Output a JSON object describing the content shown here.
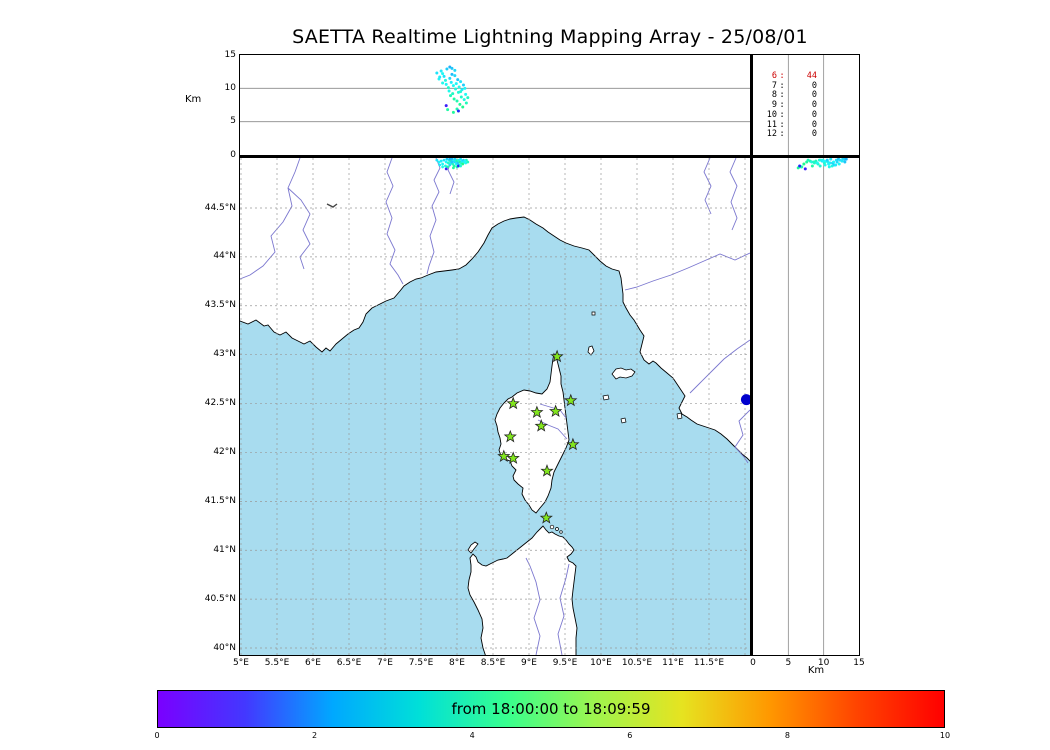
{
  "title": "SAETTA Realtime Lightning Mapping Array - 25/08/01",
  "alt_lon_panel": {
    "axis_label": "Km",
    "tick_labels": [
      "15",
      "10",
      "5",
      "0"
    ]
  },
  "alt_lat_panel": {
    "axis_label": "Km",
    "tick_labels": [
      "0",
      "5",
      "10",
      "15"
    ]
  },
  "hour_panel": {
    "rows": [
      {
        "hour": "6",
        "count": "44",
        "highlight": true
      },
      {
        "hour": "7",
        "count": "0",
        "highlight": false
      },
      {
        "hour": "8",
        "count": "0",
        "highlight": false
      },
      {
        "hour": "9",
        "count": "0",
        "highlight": false
      },
      {
        "hour": "10",
        "count": "0",
        "highlight": false
      },
      {
        "hour": "11",
        "count": "0",
        "highlight": false
      },
      {
        "hour": "12",
        "count": "0",
        "highlight": false
      }
    ]
  },
  "map_panel": {
    "lat_tick_labels": [
      "44.5°N",
      "44°N",
      "43.5°N",
      "43°N",
      "42.5°N",
      "42°N",
      "41.5°N",
      "41°N",
      "40.5°N",
      "40°N"
    ],
    "lon_tick_labels": [
      "5°E",
      "5.5°E",
      "6°E",
      "6.5°E",
      "7°E",
      "7.5°E",
      "8°E",
      "8.5°E",
      "9°E",
      "9.5°E",
      "10°E",
      "10.5°E",
      "11°E",
      "11.5°E"
    ]
  },
  "colorbar": {
    "label": "from 18:00:00 to 18:09:59",
    "tick_labels": [
      "0",
      "2",
      "4",
      "6",
      "8",
      "10"
    ],
    "gradient_stops": [
      "#7a00ff",
      "#4338ff",
      "#00a8ff",
      "#00e0d8",
      "#38ff8e",
      "#9ef54e",
      "#e6e320",
      "#ff9800",
      "#ff4400",
      "#ff0000"
    ]
  },
  "colors": {
    "sea": "#a8dcef",
    "land": "#ffffff",
    "coastline": "#000000",
    "river": "#7b77cf",
    "grid": "#999999",
    "station_fill": "#82e61e",
    "station_edge": "#222222",
    "highlight_marker": "#0000cd",
    "count_highlight": "#cc0000"
  },
  "chart_data": {
    "type": "scatter",
    "title": "SAETTA Realtime Lightning Mapping Array - 25/08/01",
    "description": "Realtime lightning mapping display: map view (lon/lat), altitude-longitude panel (top), altitude-latitude panel (right), hourly source counts, sources colored by time",
    "time_window": {
      "from": "18:00:00",
      "to": "18:09:59"
    },
    "colormap": {
      "name": "rainbow",
      "range_minutes": [
        0,
        10
      ],
      "ticks": [
        0,
        2,
        4,
        6,
        8,
        10
      ]
    },
    "altitude_axis": {
      "label": "Km",
      "range": [
        0,
        15
      ],
      "ticks": [
        0,
        5,
        10,
        15
      ],
      "tick_values_desc": [
        15,
        10,
        5,
        0
      ],
      "grid": [
        5,
        10
      ]
    },
    "map": {
      "lon_range_deg_e": [
        5.0,
        12.08
      ],
      "lat_range_deg_n": [
        39.93,
        45.01
      ],
      "lon_ticks": [
        5,
        5.5,
        6,
        6.5,
        7,
        7.5,
        8,
        8.5,
        9,
        9.5,
        10,
        10.5,
        11,
        11.5
      ],
      "lat_ticks": [
        44.5,
        44,
        43.5,
        43,
        42.5,
        42,
        41.5,
        41,
        40.5,
        40
      ],
      "lon_gridlines": [
        5,
        5.5,
        6,
        6.5,
        7,
        7.5,
        8,
        8.5,
        9,
        9.5,
        10,
        10.5,
        11,
        11.5,
        12
      ],
      "lat_gridlines": [
        44.5,
        44,
        43.5,
        43,
        42.5,
        42,
        41.5,
        41,
        40.5,
        40
      ]
    },
    "hourly_source_counts": [
      {
        "hour": 6,
        "count": 44
      },
      {
        "hour": 7,
        "count": 0
      },
      {
        "hour": 8,
        "count": 0
      },
      {
        "hour": 9,
        "count": 0
      },
      {
        "hour": 10,
        "count": 0
      },
      {
        "hour": 11,
        "count": 0
      },
      {
        "hour": 12,
        "count": 0
      }
    ],
    "lma_stations_lonlat": [
      [
        9.39,
        42.98
      ],
      [
        8.78,
        42.5
      ],
      [
        9.11,
        42.41
      ],
      [
        9.37,
        42.42
      ],
      [
        9.58,
        42.53
      ],
      [
        9.17,
        42.27
      ],
      [
        8.74,
        42.16
      ],
      [
        9.61,
        42.08
      ],
      [
        8.65,
        41.96
      ],
      [
        8.78,
        41.94
      ],
      [
        9.25,
        41.81
      ],
      [
        9.24,
        41.33
      ]
    ],
    "special_marker": {
      "lon": 12.02,
      "lat": 42.54
    },
    "lightning_sources_lon_lat_altkm_tmin": [
      [
        7.78,
        44.98,
        12.6,
        3.2
      ],
      [
        7.8,
        44.95,
        12.2,
        3.4
      ],
      [
        7.82,
        44.99,
        11.8,
        3.1
      ],
      [
        7.84,
        44.93,
        11.2,
        3.6
      ],
      [
        7.85,
        44.97,
        10.6,
        3.3
      ],
      [
        7.86,
        45.0,
        12.9,
        2.9
      ],
      [
        7.88,
        44.96,
        10.1,
        3.8
      ],
      [
        7.89,
        44.99,
        9.6,
        3.5
      ],
      [
        7.9,
        44.94,
        11.5,
        3.0
      ],
      [
        7.91,
        44.98,
        8.9,
        4.0
      ],
      [
        7.92,
        44.96,
        10.9,
        3.2
      ],
      [
        7.93,
        45.0,
        12.1,
        2.7
      ],
      [
        7.94,
        44.95,
        9.2,
        3.9
      ],
      [
        7.95,
        44.98,
        10.4,
        3.4
      ],
      [
        7.96,
        44.93,
        8.4,
        4.2
      ],
      [
        7.97,
        44.97,
        11.9,
        3.0
      ],
      [
        7.98,
        44.99,
        9.9,
        3.6
      ],
      [
        7.99,
        44.95,
        10.7,
        3.3
      ],
      [
        8.0,
        44.98,
        8.1,
        4.1
      ],
      [
        8.01,
        44.96,
        11.3,
        2.8
      ],
      [
        8.02,
        44.99,
        9.4,
        3.7
      ],
      [
        8.03,
        44.94,
        10.2,
        3.5
      ],
      [
        8.04,
        44.97,
        7.6,
        4.3
      ],
      [
        8.05,
        45.0,
        11.0,
        3.1
      ],
      [
        8.06,
        44.96,
        8.7,
        3.8
      ],
      [
        8.07,
        44.98,
        9.8,
        3.2
      ],
      [
        8.08,
        44.95,
        7.2,
        4.4
      ],
      [
        8.09,
        44.99,
        10.5,
        2.9
      ],
      [
        8.1,
        44.97,
        8.3,
        3.6
      ],
      [
        8.12,
        44.96,
        9.1,
        3.4
      ],
      [
        8.13,
        44.99,
        7.8,
        4.0
      ],
      [
        7.75,
        44.97,
        11.4,
        3.3
      ],
      [
        7.72,
        44.99,
        12.3,
        3.1
      ],
      [
        7.87,
        44.92,
        6.8,
        4.2
      ],
      [
        7.95,
        44.91,
        6.4,
        4.3
      ],
      [
        8.0,
        44.92,
        6.9,
        4.1
      ],
      [
        7.9,
        45.0,
        13.2,
        2.6
      ],
      [
        7.93,
        44.97,
        13.0,
        2.8
      ],
      [
        7.85,
        44.9,
        7.4,
        0.8
      ],
      [
        8.02,
        44.93,
        6.6,
        1.2
      ],
      [
        7.97,
        45.0,
        12.7,
        3.0
      ],
      [
        8.05,
        44.93,
        9.5,
        3.7
      ],
      [
        7.8,
        44.92,
        10.8,
        3.5
      ],
      [
        8.11,
        44.98,
        10.0,
        3.3
      ],
      [
        7.76,
        44.94,
        11.7,
        3.2
      ],
      [
        8.15,
        44.97,
        8.6,
        3.9
      ]
    ]
  }
}
